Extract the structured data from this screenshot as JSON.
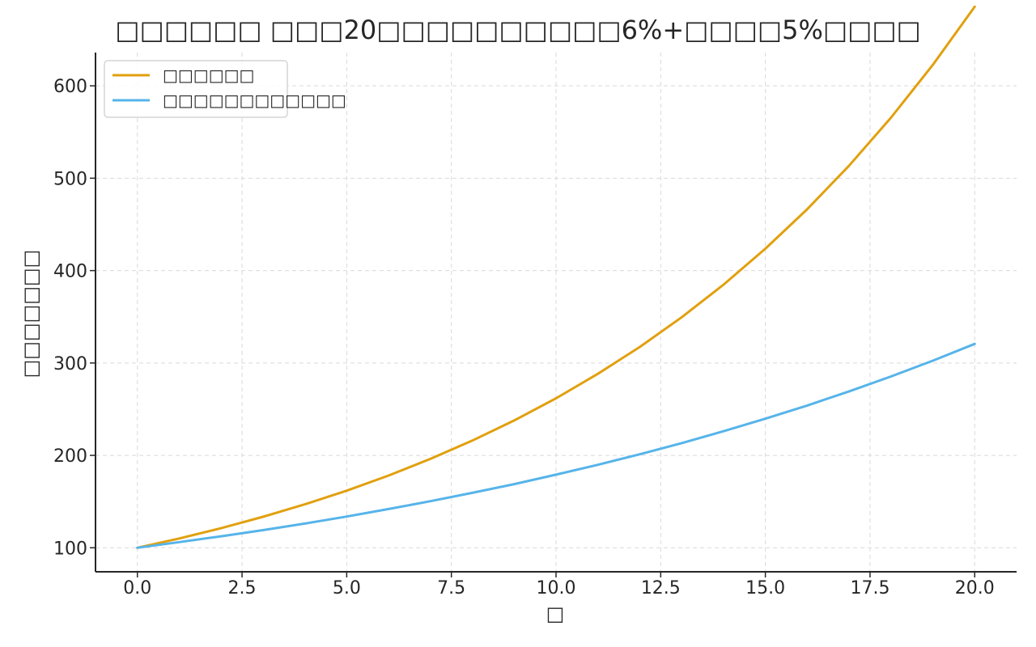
{
  "chart_data": {
    "type": "line",
    "title": "□□□□□□ □□□20□□□□□□□□□□6%+□□□□5%□□□□",
    "xlabel": "□",
    "ylabel": "□□□□□□□",
    "xlim": [
      -1,
      21
    ],
    "ylim": [
      74,
      636
    ],
    "x_ticks": [
      "0.0",
      "2.5",
      "5.0",
      "7.5",
      "10.0",
      "12.5",
      "15.0",
      "17.5",
      "20.0"
    ],
    "y_ticks": [
      "100",
      "200",
      "300",
      "400",
      "500",
      "600"
    ],
    "grid": true,
    "legend_position": "top-left",
    "x": [
      0,
      1,
      2,
      3,
      4,
      5,
      6,
      7,
      8,
      9,
      10,
      11,
      12,
      13,
      14,
      15,
      16,
      17,
      18,
      19,
      20
    ],
    "series": [
      {
        "name": "□□□□□□",
        "color": "#E1A00F",
        "values": [
          100,
          110.1,
          121.2,
          133.5,
          147.0,
          161.8,
          178.2,
          196.2,
          216.0,
          237.8,
          261.8,
          288.3,
          317.4,
          349.5,
          384.8,
          423.7,
          466.5,
          513.6,
          565.5,
          622.7,
          685.6
        ]
      },
      {
        "name": "□□□□□□□□□□□□",
        "color": "#56B4E9",
        "values": [
          100,
          106.1,
          112.4,
          119.1,
          126.2,
          133.8,
          141.9,
          150.4,
          159.4,
          168.9,
          179.1,
          189.8,
          201.2,
          213.3,
          226.1,
          239.7,
          254.0,
          269.3,
          285.4,
          302.5,
          320.7
        ]
      }
    ]
  }
}
